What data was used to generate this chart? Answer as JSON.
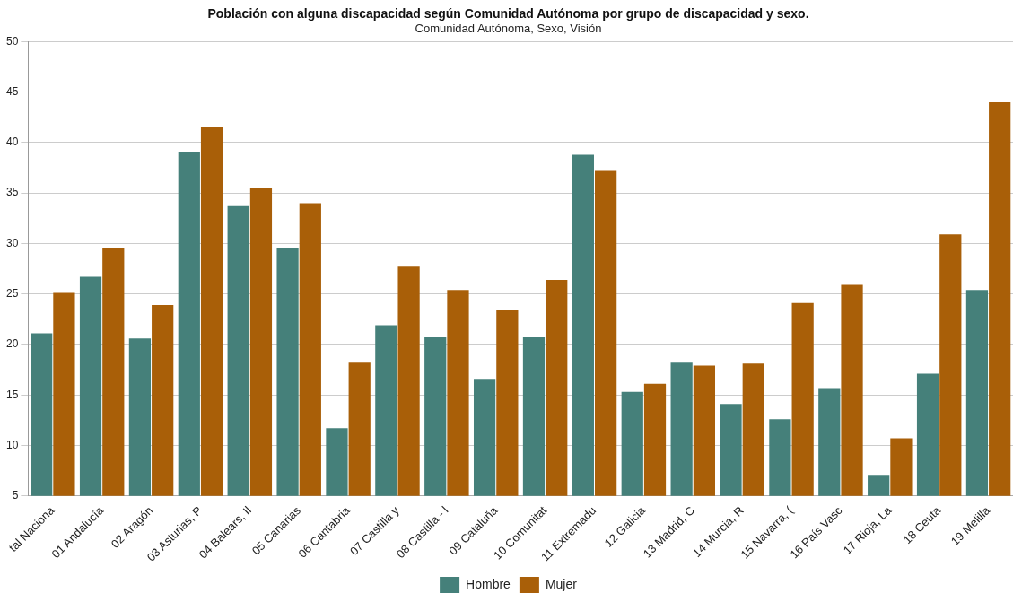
{
  "chart_data": {
    "type": "bar",
    "title": "Población con alguna discapacidad según Comunidad Autónoma por grupo de discapacidad y sexo.",
    "subtitle": "Comunidad Autónoma, Sexo, Visión",
    "categories": [
      "tal Naciona",
      "01 Andalucía",
      "02 Aragón",
      "03 Asturias, P",
      "04 Balears, Il",
      "05 Canarias",
      "06 Cantabria",
      "07 Castilla y",
      "08 Castilla - l",
      "09 Cataluña",
      "10 Comunitat",
      "11 Extremadu",
      "12 Galicia",
      "13 Madrid, C",
      "14 Murcia, R",
      "15 Navarra, (",
      "16 País Vasc",
      "17 Rioja, La",
      "18 Ceuta",
      "19 Melilla"
    ],
    "series": [
      {
        "name": "Hombre",
        "color": "#45807a",
        "values": [
          21.1,
          26.7,
          20.6,
          39.1,
          33.7,
          29.6,
          11.7,
          21.9,
          20.7,
          16.6,
          20.7,
          38.8,
          15.3,
          18.2,
          14.1,
          12.6,
          15.6,
          7.0,
          17.1,
          25.4
        ]
      },
      {
        "name": "Mujer",
        "color": "#a95f08",
        "values": [
          25.1,
          29.6,
          23.9,
          41.5,
          35.5,
          34.0,
          18.2,
          27.7,
          25.4,
          23.4,
          26.4,
          37.2,
          16.1,
          17.9,
          18.1,
          24.1,
          25.9,
          10.7,
          30.9,
          44.0
        ]
      }
    ],
    "ylim": [
      5,
      50
    ],
    "yticks": [
      5,
      10,
      15,
      20,
      25,
      30,
      35,
      40,
      45,
      50
    ],
    "grid": "y",
    "legend": "bottom"
  }
}
